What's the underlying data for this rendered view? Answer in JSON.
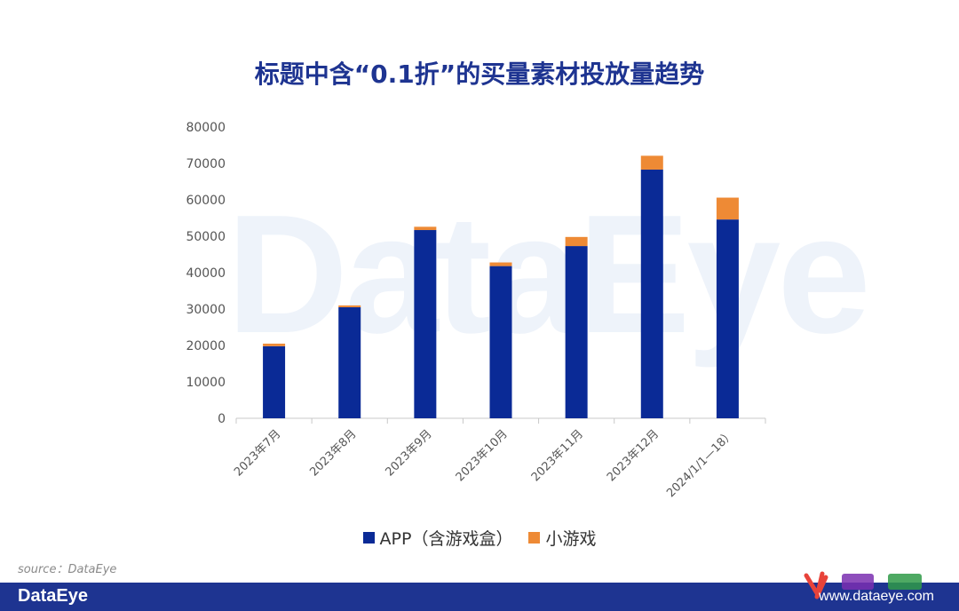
{
  "page": {
    "title": "标题中含“0.1折”的买量素材投放量趋势",
    "watermark": "DataEye",
    "source": "source：DataEye",
    "footer_brand": "DataEye",
    "footer_site": "www.dataeye.com",
    "colors": {
      "title": "#1e3491",
      "footer": "#1e3491",
      "app": "#0a2a96",
      "mini": "#ee8a35"
    }
  },
  "chart_data": {
    "type": "bar",
    "stacked": true,
    "title": "标题中含“0.1折”的买量素材投放量趋势",
    "xlabel": "",
    "ylabel": "",
    "ylim": [
      0,
      80000
    ],
    "yticks": [
      0,
      10000,
      20000,
      30000,
      40000,
      50000,
      60000,
      70000,
      80000
    ],
    "categories": [
      "2023年7月",
      "2023年8月",
      "2023年9月",
      "2023年10月",
      "2023年11月",
      "2023年12月",
      "2024/1/1—18）"
    ],
    "series": [
      {
        "name": "APP（含游戏盒）",
        "color": "#0a2a96",
        "values": [
          19800,
          30500,
          51700,
          41800,
          47300,
          68300,
          54600
        ]
      },
      {
        "name": "小游戏",
        "color": "#ee8a35",
        "values": [
          700,
          500,
          900,
          1000,
          2500,
          3800,
          6000
        ]
      }
    ],
    "legend_position": "bottom",
    "grid": false
  }
}
